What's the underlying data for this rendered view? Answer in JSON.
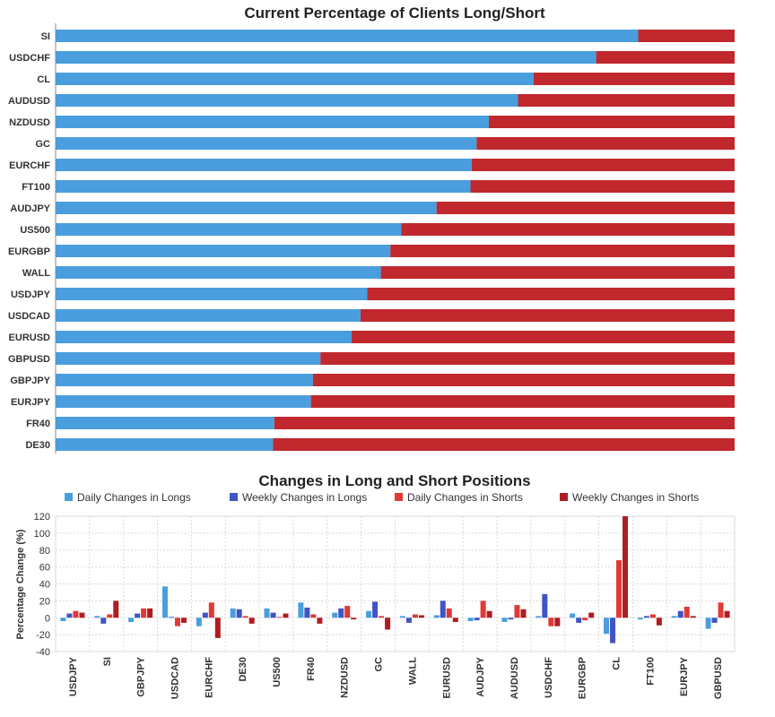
{
  "colors": {
    "long": "#4a9edd",
    "short": "#c0282d",
    "daily_long": "#4a9edd",
    "weekly_long": "#3f55c4",
    "daily_short": "#e03a36",
    "weekly_short": "#b01c22",
    "grid": "#d9d9d9"
  },
  "chart_data": [
    {
      "type": "bar",
      "orientation": "horizontal",
      "stacked": true,
      "title": "Current Percentage of Clients Long/Short",
      "categories": [
        "SI",
        "USDCHF",
        "CL",
        "AUDUSD",
        "NZDUSD",
        "GC",
        "EURCHF",
        "FT100",
        "AUDJPY",
        "US500",
        "EURGBP",
        "WALL",
        "USDJPY",
        "USDCAD",
        "EURUSD",
        "GBPUSD",
        "GBPJPY",
        "EURJPY",
        "FR40",
        "DE30"
      ],
      "series": [
        {
          "values": [
            85.8,
            79.6,
            70.4,
            68.1,
            63.8,
            62.0,
            61.3,
            61.1,
            56.1,
            50.9,
            49.3,
            47.9,
            45.9,
            44.9,
            43.6,
            39.0,
            37.9,
            37.6,
            32.2,
            32.0
          ]
        },
        {
          "values": [
            14.2,
            20.4,
            29.6,
            31.9,
            36.2,
            38.0,
            38.7,
            38.9,
            43.9,
            49.1,
            50.7,
            52.1,
            54.1,
            55.1,
            56.4,
            61.0,
            62.1,
            62.4,
            67.8,
            68.0
          ]
        }
      ],
      "xlim": [
        0,
        100
      ],
      "grid": false,
      "legend": "none"
    },
    {
      "type": "bar",
      "title": "Changes in Long and Short Positions",
      "ylabel": "Percentage Change (%)",
      "ylim": [
        -40,
        120
      ],
      "yticks": [
        -40,
        -20,
        0,
        20,
        40,
        60,
        80,
        100,
        120
      ],
      "grid": true,
      "legend": "top",
      "categories": [
        "USDJPY",
        "SI",
        "GBPJPY",
        "USDCAD",
        "EURCHF",
        "DE30",
        "US500",
        "FR40",
        "NZDUSD",
        "GC",
        "WALL",
        "EURUSD",
        "AUDJPY",
        "AUDUSD",
        "USDCHF",
        "EURGBP",
        "CL",
        "FT100",
        "EURJPY",
        "GBPUSD"
      ],
      "series": [
        {
          "name": "Daily Changes in Longs",
          "values": [
            -4,
            2,
            -5,
            37,
            -10,
            11,
            11,
            18,
            6,
            8,
            2,
            3,
            -4,
            -5,
            2,
            5,
            -19,
            -2,
            2,
            -13
          ]
        },
        {
          "name": "Weekly Changes in Longs",
          "values": [
            5,
            -7,
            5,
            1,
            6,
            10,
            6,
            12,
            11,
            19,
            -6,
            20,
            -3,
            -2,
            28,
            -6,
            -30,
            2,
            8,
            -6
          ]
        },
        {
          "name": "Daily Changes in Shorts",
          "values": [
            8,
            4,
            11,
            -10,
            18,
            2,
            1,
            4,
            14,
            2,
            4,
            11,
            20,
            15,
            -10,
            -3,
            68,
            4,
            13,
            18
          ]
        },
        {
          "name": "Weekly Changes in Shorts",
          "values": [
            6,
            20,
            11,
            -6,
            -24,
            -7,
            5,
            -7,
            -2,
            -14,
            3,
            -5,
            8,
            10,
            -10,
            6,
            120,
            -9,
            2,
            8
          ]
        }
      ]
    }
  ]
}
